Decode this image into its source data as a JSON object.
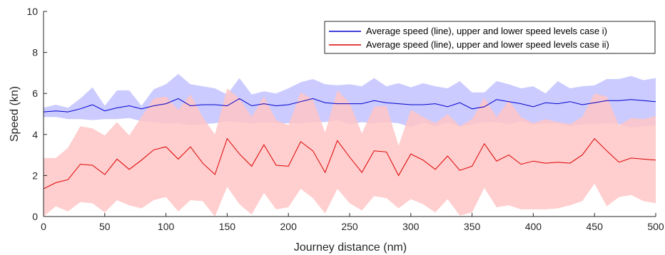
{
  "chart_data": {
    "type": "area",
    "xlabel": "Journey distance (nm)",
    "ylabel": "Speed (kn)",
    "xlim": [
      0,
      500
    ],
    "ylim": [
      0,
      10
    ],
    "x_ticks": [
      0,
      50,
      100,
      150,
      200,
      250,
      300,
      350,
      400,
      450,
      500
    ],
    "y_ticks": [
      0,
      2,
      4,
      6,
      8,
      10
    ],
    "grid": false,
    "legend_position": "top-right",
    "x": [
      0,
      10,
      20,
      30,
      40,
      50,
      60,
      70,
      80,
      90,
      100,
      110,
      120,
      130,
      140,
      150,
      160,
      170,
      180,
      190,
      200,
      210,
      220,
      230,
      240,
      250,
      260,
      270,
      280,
      290,
      300,
      310,
      320,
      330,
      340,
      350,
      360,
      370,
      380,
      390,
      400,
      410,
      420,
      430,
      440,
      450,
      460,
      470,
      480,
      490,
      500
    ],
    "series": [
      {
        "name": "Average speed (line), upper and lower speed levels case i)",
        "color": "#0000cc",
        "fill": "#c8c8ff",
        "mean": [
          5.1,
          5.15,
          5.1,
          5.25,
          5.45,
          5.15,
          5.3,
          5.4,
          5.25,
          5.4,
          5.5,
          5.75,
          5.4,
          5.45,
          5.45,
          5.4,
          5.75,
          5.4,
          5.5,
          5.4,
          5.45,
          5.6,
          5.75,
          5.55,
          5.5,
          5.5,
          5.5,
          5.65,
          5.55,
          5.5,
          5.45,
          5.45,
          5.5,
          5.35,
          5.55,
          5.25,
          5.35,
          5.7,
          5.6,
          5.5,
          5.35,
          5.55,
          5.5,
          5.6,
          5.45,
          5.55,
          5.65,
          5.65,
          5.7,
          5.65,
          5.6
        ],
        "upper": [
          5.3,
          5.45,
          5.3,
          5.75,
          6.3,
          5.4,
          6.15,
          6.15,
          5.4,
          6.2,
          6.45,
          6.95,
          6.45,
          6.35,
          6.25,
          5.95,
          6.75,
          5.95,
          6.1,
          6.0,
          6.25,
          6.55,
          6.7,
          6.45,
          6.4,
          6.45,
          6.35,
          6.75,
          6.35,
          6.5,
          6.3,
          6.5,
          6.35,
          6.25,
          6.6,
          6.05,
          6.05,
          6.6,
          6.45,
          6.25,
          6.35,
          6.0,
          6.6,
          6.25,
          6.35,
          6.4,
          6.7,
          6.7,
          6.85,
          6.65,
          6.75
        ],
        "lower": [
          4.85,
          4.85,
          4.75,
          4.75,
          4.7,
          4.75,
          4.75,
          4.8,
          4.65,
          4.6,
          4.55,
          4.55,
          4.45,
          4.5,
          4.55,
          4.65,
          4.6,
          4.55,
          4.6,
          4.55,
          4.55,
          4.55,
          4.6,
          4.6,
          4.7,
          4.5,
          4.6,
          4.55,
          4.6,
          4.55,
          4.35,
          4.6,
          4.4,
          4.6,
          4.4,
          4.5,
          4.6,
          4.6,
          4.5,
          4.65,
          4.5,
          4.55,
          4.55,
          4.4,
          4.5,
          4.5,
          4.55,
          4.5,
          4.35,
          4.4,
          4.45
        ]
      },
      {
        "name": "Average speed (line), upper and lower speed levels case ii)",
        "color": "#dd0000",
        "fill": "#ffc6c6",
        "mean": [
          1.35,
          1.65,
          1.8,
          2.55,
          2.5,
          2.05,
          2.8,
          2.3,
          2.75,
          3.25,
          3.4,
          2.8,
          3.4,
          2.6,
          2.05,
          3.8,
          3.05,
          2.45,
          3.5,
          2.5,
          2.45,
          3.65,
          3.2,
          2.15,
          3.7,
          2.9,
          2.15,
          3.2,
          3.15,
          2.0,
          3.05,
          2.75,
          2.3,
          2.95,
          2.25,
          2.45,
          3.55,
          2.7,
          3.0,
          2.55,
          2.7,
          2.6,
          2.65,
          2.6,
          3.0,
          3.8,
          3.2,
          2.65,
          2.85,
          2.8,
          2.75
        ],
        "upper": [
          2.85,
          2.85,
          3.35,
          4.4,
          4.3,
          3.95,
          4.6,
          3.95,
          4.85,
          5.75,
          5.85,
          5.2,
          5.95,
          4.85,
          4.0,
          6.25,
          5.75,
          4.85,
          5.85,
          4.7,
          4.45,
          6.05,
          5.7,
          4.1,
          6.15,
          5.55,
          4.05,
          5.35,
          5.4,
          3.45,
          5.2,
          4.85,
          4.55,
          5.0,
          4.4,
          4.75,
          5.8,
          4.85,
          5.65,
          4.85,
          4.55,
          4.75,
          4.6,
          4.5,
          4.85,
          6.0,
          5.85,
          4.45,
          4.8,
          4.75,
          4.9
        ],
        "lower": [
          0.0,
          0.5,
          0.25,
          0.7,
          0.65,
          0.2,
          0.8,
          0.55,
          0.4,
          0.8,
          0.95,
          0.25,
          0.8,
          0.75,
          0.0,
          1.45,
          0.6,
          0.1,
          1.15,
          0.35,
          0.45,
          1.35,
          0.9,
          0.15,
          1.35,
          0.65,
          0.3,
          1.0,
          0.9,
          0.4,
          0.85,
          0.6,
          0.2,
          0.85,
          0.05,
          0.2,
          1.4,
          0.45,
          0.55,
          0.35,
          0.35,
          0.35,
          0.4,
          0.55,
          0.75,
          1.6,
          0.5,
          0.95,
          1.05,
          0.75,
          0.65
        ]
      }
    ]
  }
}
